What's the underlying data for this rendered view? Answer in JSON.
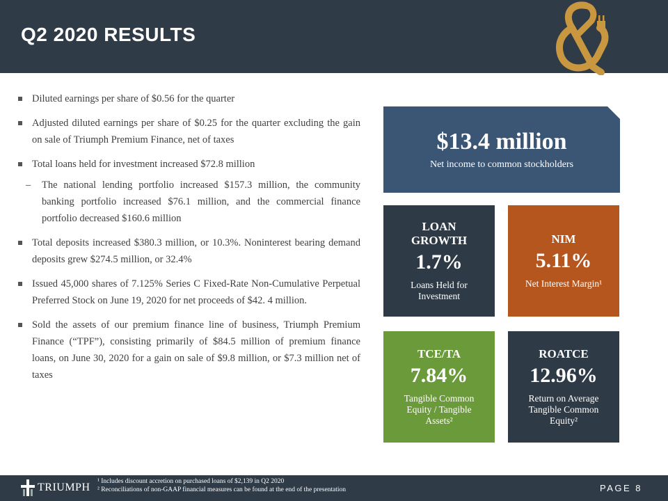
{
  "header": {
    "title": "Q2 2020 RESULTS"
  },
  "bullets": [
    {
      "text": "Diluted earnings per share of $0.56 for the quarter"
    },
    {
      "text": "Adjusted diluted earnings per share of $0.25 for the quarter excluding the gain on sale of Triumph Premium Finance, net of taxes"
    },
    {
      "text": "Total loans held for investment increased $72.8 million",
      "sub": [
        "The national lending portfolio increased $157.3 million, the community banking portfolio increased $76.1 million, and the commercial finance portfolio decreased $160.6 million"
      ]
    },
    {
      "text": "Total deposits increased $380.3 million, or 10.3%. Noninterest bearing demand deposits grew $274.5 million, or 32.4%"
    },
    {
      "text": "Issued 45,000 shares of 7.125% Series C Fixed-Rate Non-Cumulative Perpetual Preferred Stock on June 19, 2020 for net proceeds of $42. 4 million."
    },
    {
      "text": "Sold the assets of our premium finance line of business, Triumph Premium Finance (“TPF”), consisting primarily of $84.5 million of premium finance loans, on June 30, 2020 for a gain on sale of $9.8 million, or $7.3 million net of taxes"
    }
  ],
  "highlight": {
    "value": "$13.4 million",
    "label": "Net income to common stockholders"
  },
  "tiles": [
    {
      "heading": "LOAN GROWTH",
      "value": "1.7%",
      "label": "Loans Held for Investment"
    },
    {
      "heading": "NIM",
      "value": "5.11%",
      "label": "Net Interest Margin¹"
    },
    {
      "heading": "TCE/TA",
      "value": "7.84%",
      "label": "Tangible Common Equity / Tangible Assets²"
    },
    {
      "heading": "ROATCE",
      "value": "12.96%",
      "label": "Return on Average Tangible Common Equity²"
    }
  ],
  "footer": {
    "logo": "TRIUMPH",
    "footnotes": [
      "¹ Includes discount accretion on purchased loans of $2,139 in Q2 2020",
      "² Reconciliations of non-GAAP financial measures can be found at the end of the presentation"
    ],
    "page_label": "PAGE",
    "page_number": "8"
  }
}
